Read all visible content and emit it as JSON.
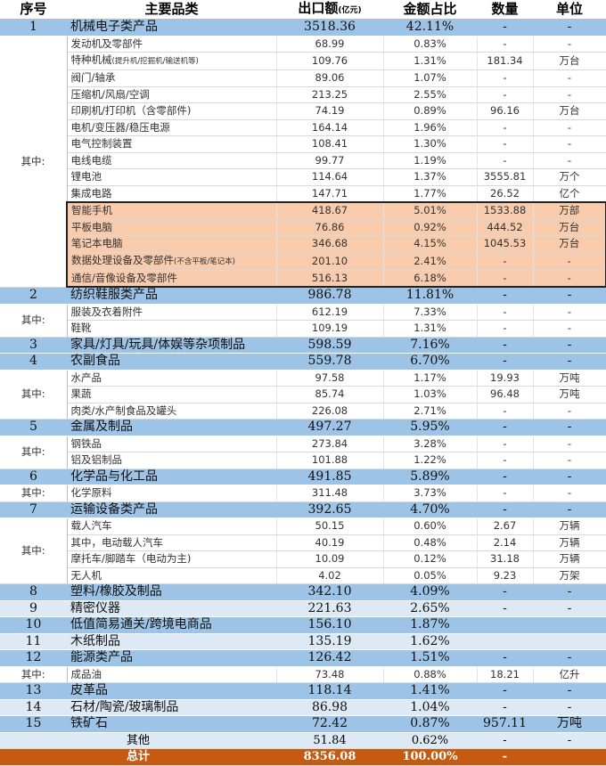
{
  "header": {
    "no": "序号",
    "name": "主要品类",
    "amount": "出口额",
    "amount_unit": "(亿元)",
    "share": "金额占比",
    "qty": "数量",
    "unit": "单位"
  },
  "group_label": "其中:",
  "colors": {
    "major": "#9dc3e6",
    "light": "#dde9f5",
    "highlight": "#f8cbad",
    "total": "#c55a11"
  },
  "items": [
    {
      "no": "1",
      "name": "机械电子类产品",
      "amount": "3518.36",
      "share": "42.11%",
      "qty": "-",
      "unit": "-",
      "subs": [
        {
          "name": "发动机及零部件",
          "amount": "68.99",
          "share": "0.83%",
          "qty": "-",
          "unit": "-"
        },
        {
          "name": "特种机械",
          "note": "(提升机/挖掘机/输送机等)",
          "amount": "109.76",
          "share": "1.31%",
          "qty": "181.34",
          "unit": "万台"
        },
        {
          "name": "阀门/轴承",
          "amount": "89.06",
          "share": "1.07%",
          "qty": "-",
          "unit": "-"
        },
        {
          "name": "压缩机/风扇/空调",
          "amount": "213.25",
          "share": "2.55%",
          "qty": "-",
          "unit": "-"
        },
        {
          "name": "印刷机/打印机（含零部件)",
          "amount": "74.19",
          "share": "0.89%",
          "qty": "96.16",
          "unit": "万台"
        },
        {
          "name": "电机/变压器/稳压电源",
          "amount": "164.14",
          "share": "1.96%",
          "qty": "-",
          "unit": "-"
        },
        {
          "name": "电气控制装置",
          "amount": "108.41",
          "share": "1.30%",
          "qty": "-",
          "unit": "-"
        },
        {
          "name": "电线电缆",
          "amount": "99.77",
          "share": "1.19%",
          "qty": "-",
          "unit": "-"
        },
        {
          "name": "锂电池",
          "amount": "114.64",
          "share": "1.37%",
          "qty": "3555.81",
          "unit": "万个"
        },
        {
          "name": "集成电路",
          "amount": "147.71",
          "share": "1.77%",
          "qty": "26.52",
          "unit": "亿个"
        },
        {
          "name": "智能手机",
          "amount": "418.67",
          "share": "5.01%",
          "qty": "1533.88",
          "unit": "万部",
          "highlight": true
        },
        {
          "name": "平板电脑",
          "amount": "76.86",
          "share": "0.92%",
          "qty": "444.52",
          "unit": "万台",
          "highlight": true
        },
        {
          "name": "笔记本电脑",
          "amount": "346.68",
          "share": "4.15%",
          "qty": "1045.53",
          "unit": "万台",
          "highlight": true
        },
        {
          "name": "数据处理设备及零部件",
          "note": "(不含平板/笔记本)",
          "amount": "201.10",
          "share": "2.41%",
          "qty": "-",
          "unit": "-",
          "highlight": true
        },
        {
          "name": "通信/音像设备及零部件",
          "amount": "516.13",
          "share": "6.18%",
          "qty": "-",
          "unit": "-",
          "highlight": true
        }
      ]
    },
    {
      "no": "2",
      "name": "纺织鞋服类产品",
      "amount": "986.78",
      "share": "11.81%",
      "qty": "-",
      "unit": "-",
      "subs": [
        {
          "name": "服装及衣着附件",
          "amount": "612.19",
          "share": "7.33%",
          "qty": "-",
          "unit": "-"
        },
        {
          "name": "鞋靴",
          "amount": "109.19",
          "share": "1.31%",
          "qty": "-",
          "unit": "-"
        }
      ]
    },
    {
      "no": "3",
      "name": "家具/灯具/玩具/体娱等杂项制品",
      "amount": "598.59",
      "share": "7.16%",
      "qty": "-",
      "unit": "-"
    },
    {
      "no": "4",
      "name": "农副食品",
      "amount": "559.78",
      "share": "6.70%",
      "qty": "-",
      "unit": "-",
      "subs": [
        {
          "name": "水产品",
          "amount": "97.58",
          "share": "1.17%",
          "qty": "19.93",
          "unit": "万吨"
        },
        {
          "name": "果蔬",
          "amount": "85.74",
          "share": "1.03%",
          "qty": "96.48",
          "unit": "万吨"
        },
        {
          "name": "肉类/水产制食品及罐头",
          "amount": "226.08",
          "share": "2.71%",
          "qty": "-",
          "unit": "-"
        }
      ]
    },
    {
      "no": "5",
      "name": "金属及制品",
      "amount": "497.27",
      "share": "5.95%",
      "qty": "-",
      "unit": "-",
      "subs": [
        {
          "name": "钢铁品",
          "amount": "273.84",
          "share": "3.28%",
          "qty": "-",
          "unit": "-"
        },
        {
          "name": "铝及铝制品",
          "amount": "101.88",
          "share": "1.22%",
          "qty": "-",
          "unit": "-"
        }
      ]
    },
    {
      "no": "6",
      "name": "化学品与化工品",
      "amount": "491.85",
      "share": "5.89%",
      "qty": "-",
      "unit": "-",
      "subs": [
        {
          "name": "化学原料",
          "amount": "311.48",
          "share": "3.73%",
          "qty": "-",
          "unit": "-"
        }
      ]
    },
    {
      "no": "7",
      "name": "运输设备类产品",
      "amount": "392.65",
      "share": "4.70%",
      "qty": "-",
      "unit": "-",
      "subs": [
        {
          "name": "载人汽车",
          "amount": "50.15",
          "share": "0.60%",
          "qty": "2.67",
          "unit": "万辆"
        },
        {
          "name": "其中，电动载人汽车",
          "amount": "40.19",
          "share": "0.48%",
          "qty": "2.14",
          "unit": "万辆"
        },
        {
          "name": "摩托车/脚踏车（电动为主)",
          "amount": "10.09",
          "share": "0.12%",
          "qty": "31.18",
          "unit": "万辆"
        },
        {
          "name": "无人机",
          "amount": "4.02",
          "share": "0.05%",
          "qty": "9.23",
          "unit": "万架"
        }
      ]
    },
    {
      "no": "8",
      "name": "塑料/橡胶及制品",
      "amount": "342.10",
      "share": "4.09%",
      "qty": "-",
      "unit": "-"
    },
    {
      "no": "9",
      "name": "精密仪器",
      "amount": "221.63",
      "share": "2.65%",
      "qty": "-",
      "unit": "-",
      "light": true
    },
    {
      "no": "10",
      "name": "低值简易通关/跨境电商品",
      "amount": "156.10",
      "share": "1.87%",
      "qty": "",
      "unit": ""
    },
    {
      "no": "11",
      "name": "木纸制品",
      "amount": "135.19",
      "share": "1.62%",
      "qty": "",
      "unit": "",
      "light": true
    },
    {
      "no": "12",
      "name": "能源类产品",
      "amount": "126.42",
      "share": "1.51%",
      "qty": "-",
      "unit": "-",
      "subs": [
        {
          "name": "成品油",
          "amount": "73.48",
          "share": "0.88%",
          "qty": "18.21",
          "unit": "亿升"
        }
      ]
    },
    {
      "no": "13",
      "name": "皮革品",
      "amount": "118.14",
      "share": "1.41%",
      "qty": "-",
      "unit": "-"
    },
    {
      "no": "14",
      "name": "石材/陶瓷/玻璃制品",
      "amount": "86.98",
      "share": "1.04%",
      "qty": "-",
      "unit": "-",
      "light": true
    },
    {
      "no": "15",
      "name": "铁矿石",
      "amount": "72.42",
      "share": "0.87%",
      "qty": "957.11",
      "unit": "万吨"
    }
  ],
  "other": {
    "name": "其他",
    "amount": "51.84",
    "share": "0.62%",
    "qty": "-",
    "unit": "-"
  },
  "total": {
    "name": "总计",
    "amount": "8356.08",
    "share": "100.00%",
    "qty": "-",
    "unit": ""
  }
}
